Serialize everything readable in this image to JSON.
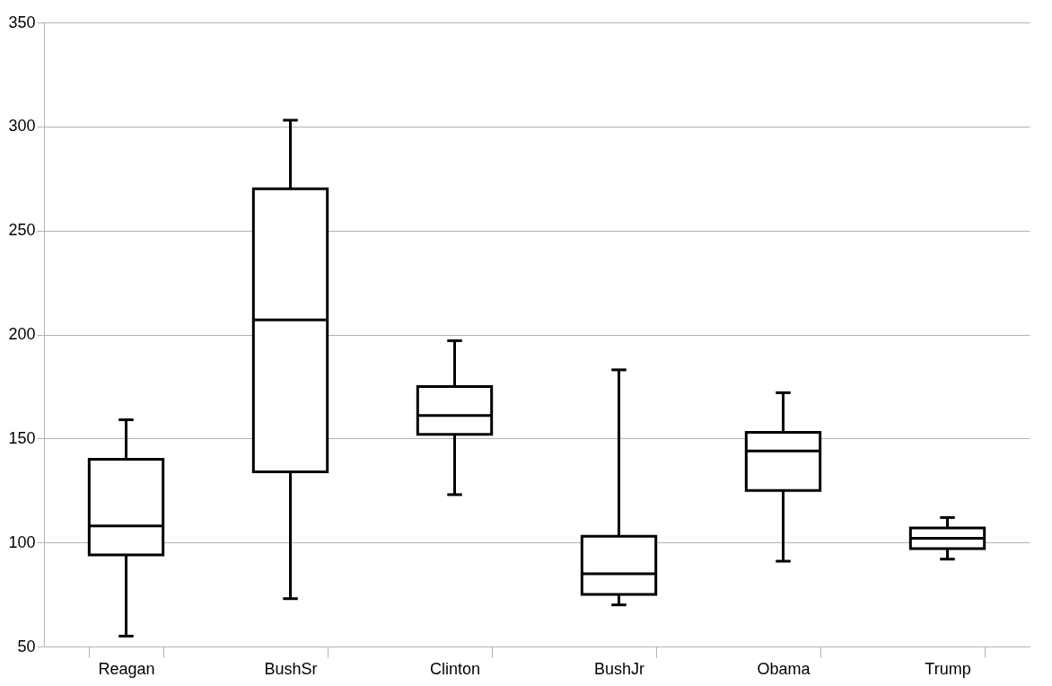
{
  "chart_data": {
    "type": "box",
    "categories": [
      "Reagan",
      "BushSr",
      "Clinton",
      "BushJr",
      "Obama",
      "Trump"
    ],
    "boxes": [
      {
        "low": 55,
        "q1": 94,
        "median": 108,
        "q3": 140,
        "high": 159
      },
      {
        "low": 73,
        "q1": 134,
        "median": 207,
        "q3": 270,
        "high": 303
      },
      {
        "low": 123,
        "q1": 152,
        "median": 161,
        "q3": 175,
        "high": 197
      },
      {
        "low": 70,
        "q1": 75,
        "median": 85,
        "q3": 103,
        "high": 183
      },
      {
        "low": 91,
        "q1": 125,
        "median": 144,
        "q3": 153,
        "high": 172
      },
      {
        "low": 92,
        "q1": 97,
        "median": 102,
        "q3": 107,
        "high": 112
      }
    ],
    "color": "#000000",
    "ylim": [
      50,
      350
    ],
    "yticks": [
      50,
      100,
      150,
      200,
      250,
      300,
      350
    ],
    "grid": "y"
  }
}
